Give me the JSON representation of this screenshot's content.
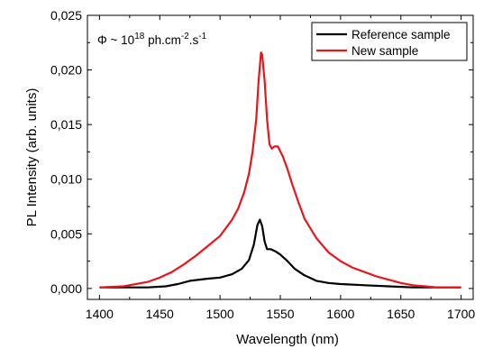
{
  "chart_data": {
    "type": "line",
    "title": "",
    "xlabel": "Wavelength (nm)",
    "ylabel": "PL Intensity (arb. units)",
    "xlim": [
      1390,
      1710
    ],
    "ylim": [
      -0.001,
      0.025
    ],
    "xticks": [
      1400,
      1450,
      1500,
      1550,
      1600,
      1650,
      1700
    ],
    "xtick_labels": [
      "1400",
      "1450",
      "1500",
      "1550",
      "1600",
      "1650",
      "1700"
    ],
    "yticks": [
      0.0,
      0.005,
      0.01,
      0.015,
      0.02,
      0.025
    ],
    "ytick_labels": [
      "0,000",
      "0,005",
      "0,010",
      "0,015",
      "0,020",
      "0,025"
    ],
    "grid": false,
    "legend_position": "top-right",
    "annotation": {
      "base": "Φ ~ 10",
      "exp1": "18",
      "mid": " ph.cm",
      "exp2": "-2",
      "mid2": ".s",
      "exp3": "-1"
    },
    "series": [
      {
        "name": "Reference sample",
        "color": "#000000",
        "x": [
          1400,
          1420,
          1440,
          1455,
          1465,
          1475,
          1490,
          1500,
          1510,
          1518,
          1524,
          1528,
          1531,
          1533,
          1535,
          1537,
          1539,
          1542,
          1546,
          1550,
          1556,
          1562,
          1570,
          1580,
          1590,
          1600,
          1620,
          1640,
          1660,
          1680,
          1700
        ],
        "y": [
          0.0001,
          0.0001,
          0.0001,
          0.0002,
          0.0004,
          0.0007,
          0.0009,
          0.001,
          0.0013,
          0.0018,
          0.0026,
          0.004,
          0.0058,
          0.0063,
          0.0057,
          0.0043,
          0.0036,
          0.0036,
          0.0034,
          0.0031,
          0.0025,
          0.0018,
          0.0012,
          0.0007,
          0.0005,
          0.0004,
          0.0003,
          0.0002,
          0.0001,
          0.0001,
          0.0001
        ]
      },
      {
        "name": "New sample",
        "color": "#e8161b",
        "x": [
          1400,
          1420,
          1440,
          1450,
          1460,
          1470,
          1480,
          1490,
          1500,
          1510,
          1515,
          1520,
          1524,
          1527,
          1530,
          1532,
          1534,
          1535,
          1537,
          1539,
          1541,
          1543,
          1545,
          1548,
          1552,
          1556,
          1560,
          1565,
          1570,
          1580,
          1590,
          1600,
          1610,
          1620,
          1630,
          1640,
          1650,
          1660,
          1670,
          1680,
          1690,
          1700
        ],
        "y": [
          0.0001,
          0.0002,
          0.0006,
          0.001,
          0.0015,
          0.0022,
          0.003,
          0.0039,
          0.0048,
          0.0063,
          0.0073,
          0.0088,
          0.0105,
          0.0125,
          0.0155,
          0.019,
          0.0216,
          0.0214,
          0.019,
          0.0155,
          0.0132,
          0.0128,
          0.013,
          0.013,
          0.0121,
          0.0109,
          0.0095,
          0.0079,
          0.0064,
          0.0046,
          0.0033,
          0.0025,
          0.0019,
          0.0015,
          0.0011,
          0.0008,
          0.0005,
          0.0003,
          0.0002,
          0.0001,
          0.0001,
          0.0001
        ]
      }
    ]
  }
}
